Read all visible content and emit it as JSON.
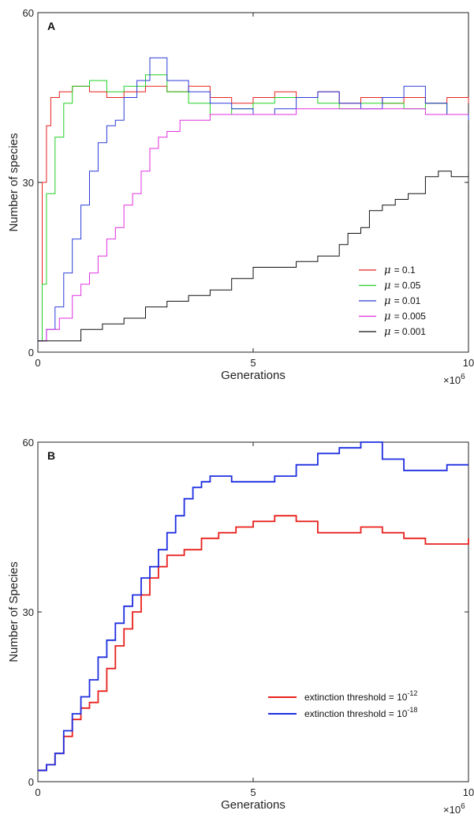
{
  "chart_data": [
    {
      "type": "line",
      "panel_label": "A",
      "xlabel": "Generations",
      "ylabel": "Number of species",
      "x_multiplier": "×10",
      "x_multiplier_exp": "6",
      "xlim": [
        0,
        10
      ],
      "ylim": [
        0,
        60
      ],
      "xticks": [
        "0",
        "5",
        "10"
      ],
      "yticks": [
        "0",
        "30",
        "60"
      ],
      "legend_position": "bottom-right",
      "legend_prefix": "μ",
      "series": [
        {
          "name": "= 0.1",
          "color": "#e8201c",
          "x": [
            0,
            0.1,
            0.2,
            0.3,
            0.5,
            0.8,
            1.2,
            1.6,
            2.0,
            2.5,
            3.0,
            3.5,
            4.0,
            4.5,
            5.0,
            5.5,
            6.0,
            6.5,
            7.0,
            7.5,
            8.0,
            8.5,
            9.0,
            9.5,
            10
          ],
          "y": [
            2,
            30,
            40,
            45,
            46,
            47,
            46,
            45,
            46,
            47,
            46,
            47,
            45,
            44,
            45,
            46,
            45,
            46,
            44,
            45,
            44,
            45,
            44,
            45,
            44
          ]
        },
        {
          "name": "= 0.05",
          "color": "#22d022",
          "x": [
            0,
            0.1,
            0.2,
            0.4,
            0.6,
            0.8,
            1.2,
            1.6,
            2.0,
            2.5,
            3.0,
            3.5,
            4.0,
            4.5,
            5.0,
            5.5,
            6.0,
            6.5,
            7.0,
            7.5,
            8.0,
            8.5,
            9.0,
            9.5,
            10
          ],
          "y": [
            2,
            12,
            28,
            38,
            44,
            47,
            48,
            46,
            47,
            49,
            46,
            44,
            42,
            43,
            44,
            45,
            45,
            44,
            43,
            44,
            44,
            43,
            44,
            42,
            41
          ]
        },
        {
          "name": "= 0.01",
          "color": "#2b3bd8",
          "x": [
            0,
            0.2,
            0.4,
            0.6,
            0.8,
            1.0,
            1.2,
            1.4,
            1.6,
            1.8,
            2.0,
            2.3,
            2.6,
            3.0,
            3.5,
            4.0,
            4.5,
            5.0,
            5.5,
            6.0,
            6.5,
            7.0,
            7.5,
            8.0,
            8.5,
            9.0,
            9.5,
            10
          ],
          "y": [
            2,
            4,
            8,
            14,
            20,
            26,
            32,
            37,
            40,
            41,
            45,
            48,
            52,
            48,
            46,
            44,
            43,
            42,
            43,
            45,
            46,
            44,
            43,
            45,
            47,
            44,
            42,
            41
          ]
        },
        {
          "name": "= 0.005",
          "color": "#e030e0",
          "x": [
            0,
            0.2,
            0.5,
            0.8,
            1.0,
            1.2,
            1.4,
            1.6,
            1.8,
            2.0,
            2.2,
            2.4,
            2.6,
            2.8,
            3.0,
            3.3,
            3.6,
            4.0,
            4.5,
            5.0,
            5.5,
            6.0,
            6.5,
            7.0,
            7.5,
            8.0,
            8.5,
            9.0,
            9.5,
            10
          ],
          "y": [
            2,
            4,
            6,
            10,
            12,
            14,
            17,
            20,
            22,
            26,
            28,
            32,
            36,
            38,
            39,
            41,
            41,
            42,
            42,
            42,
            42,
            43,
            43,
            43,
            43,
            43,
            43,
            42,
            42,
            42
          ]
        },
        {
          "name": "= 0.001",
          "color": "#111111",
          "x": [
            0,
            0.8,
            1.0,
            1.5,
            2.0,
            2.5,
            3.0,
            3.5,
            4.0,
            4.5,
            5.0,
            5.5,
            6.0,
            6.5,
            7.0,
            7.2,
            7.5,
            7.7,
            8.0,
            8.3,
            8.6,
            9.0,
            9.3,
            9.6,
            10
          ],
          "y": [
            2,
            2,
            4,
            5,
            6,
            8,
            9,
            10,
            11,
            13,
            15,
            15,
            16,
            17,
            19,
            21,
            22,
            25,
            26,
            27,
            28,
            31,
            32,
            31,
            32
          ]
        }
      ]
    },
    {
      "type": "line",
      "panel_label": "B",
      "xlabel": "Generations",
      "ylabel": "Number of Species",
      "x_multiplier": "×10",
      "x_multiplier_exp": "6",
      "xlim": [
        0,
        10
      ],
      "ylim": [
        0,
        60
      ],
      "xticks": [
        "0",
        "5",
        "10"
      ],
      "yticks": [
        "0",
        "30",
        "60"
      ],
      "legend_position": "bottom-right",
      "series": [
        {
          "name": "extinction threshold = 10",
          "name_exp": "-12",
          "color": "#e8201c",
          "x": [
            0,
            0.2,
            0.4,
            0.6,
            0.8,
            1.0,
            1.2,
            1.4,
            1.6,
            1.8,
            2.0,
            2.2,
            2.4,
            2.6,
            2.8,
            3.0,
            3.4,
            3.8,
            4.2,
            4.6,
            5.0,
            5.5,
            6.0,
            6.5,
            7.0,
            7.5,
            8.0,
            8.5,
            9.0,
            9.5,
            10
          ],
          "y": [
            2,
            3,
            5,
            8,
            11,
            13,
            14,
            16,
            20,
            24,
            27,
            30,
            33,
            36,
            38,
            40,
            41,
            43,
            44,
            45,
            46,
            47,
            46,
            44,
            44,
            45,
            44,
            43,
            42,
            42,
            43
          ]
        },
        {
          "name": "extinction threshold = 10",
          "name_exp": "-18",
          "color": "#1e2ee0",
          "x": [
            0,
            0.2,
            0.4,
            0.6,
            0.8,
            1.0,
            1.2,
            1.4,
            1.6,
            1.8,
            2.0,
            2.2,
            2.4,
            2.6,
            2.8,
            3.0,
            3.2,
            3.4,
            3.6,
            3.8,
            4.0,
            4.5,
            5.0,
            5.5,
            6.0,
            6.5,
            7.0,
            7.5,
            8.0,
            8.5,
            9.0,
            9.5,
            10
          ],
          "y": [
            2,
            3,
            5,
            9,
            12,
            15,
            18,
            22,
            25,
            28,
            31,
            33,
            36,
            38,
            41,
            44,
            47,
            50,
            52,
            53,
            54,
            53,
            53,
            54,
            56,
            58,
            59,
            60,
            57,
            55,
            55,
            56,
            56
          ]
        }
      ]
    }
  ]
}
